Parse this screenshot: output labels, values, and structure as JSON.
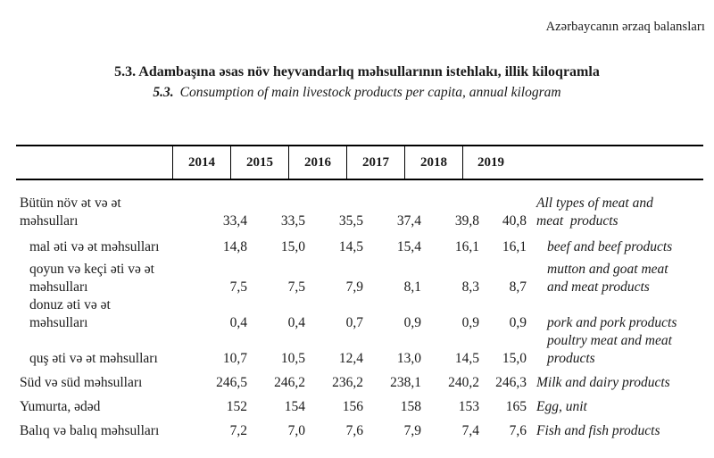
{
  "page": {
    "running_title": "Azərbaycanın ərzaq balansları",
    "title_az": "5.3. Adambaşına əsas növ heyvandarlıq məhsullarının istehlakı, illik kiloqramla",
    "title_en_num": "5.3.",
    "title_en": "Consumption of main livestock products per capita, annual kilogram"
  },
  "table": {
    "years": [
      "2014",
      "2015",
      "2016",
      "2017",
      "2018",
      "2019"
    ],
    "rows": [
      {
        "level": "main",
        "label_az": [
          "Bütün növ ət və ət",
          "məhsulları"
        ],
        "values": [
          "33,4",
          "33,5",
          "35,5",
          "37,4",
          "39,8",
          "40,8"
        ],
        "label_en": [
          "All types of meat and",
          "meat  products"
        ]
      },
      {
        "level": "sub",
        "label_az": [
          "mal əti və ət məhsulları"
        ],
        "values": [
          "14,8",
          "15,0",
          "14,5",
          "15,4",
          "16,1",
          "16,1"
        ],
        "label_en": [
          "beef and beef products"
        ]
      },
      {
        "level": "sub",
        "label_az": [
          "qoyun və keçi əti və ət",
          "məhsulları"
        ],
        "values": [
          "7,5",
          "7,5",
          "7,9",
          "8,1",
          "8,3",
          "8,7"
        ],
        "label_en": [
          "mutton and goat meat",
          "and meat products"
        ]
      },
      {
        "level": "sub",
        "label_az": [
          "donuz əti və ət",
          "məhsulları"
        ],
        "values": [
          "0,4",
          "0,4",
          "0,7",
          "0,9",
          "0,9",
          "0,9"
        ],
        "label_en": [
          "pork and pork products"
        ]
      },
      {
        "level": "sub",
        "label_az": [
          "quş əti və ət məhsulları"
        ],
        "values": [
          "10,7",
          "10,5",
          "12,4",
          "13,0",
          "14,5",
          "15,0"
        ],
        "label_en": [
          "poultry meat and meat",
          "products"
        ]
      },
      {
        "level": "main",
        "label_az": [
          "Süd və süd məhsulları"
        ],
        "values": [
          "246,5",
          "246,2",
          "236,2",
          "238,1",
          "240,2",
          "246,3"
        ],
        "label_en": [
          "Milk and dairy products"
        ]
      },
      {
        "level": "main",
        "label_az": [
          "Yumurta, ədəd"
        ],
        "values": [
          "152",
          "154",
          "156",
          "158",
          "153",
          "165"
        ],
        "label_en": [
          "Egg, unit"
        ]
      },
      {
        "level": "main",
        "label_az": [
          "Balıq və balıq məhsulları"
        ],
        "values": [
          "7,2",
          "7,0",
          "7,6",
          "7,9",
          "7,4",
          "7,6"
        ],
        "label_en": [
          "Fish and fish products"
        ]
      }
    ]
  },
  "colors": {
    "text": "#1a1a1a",
    "border": "#000000",
    "background": "#ffffff"
  }
}
